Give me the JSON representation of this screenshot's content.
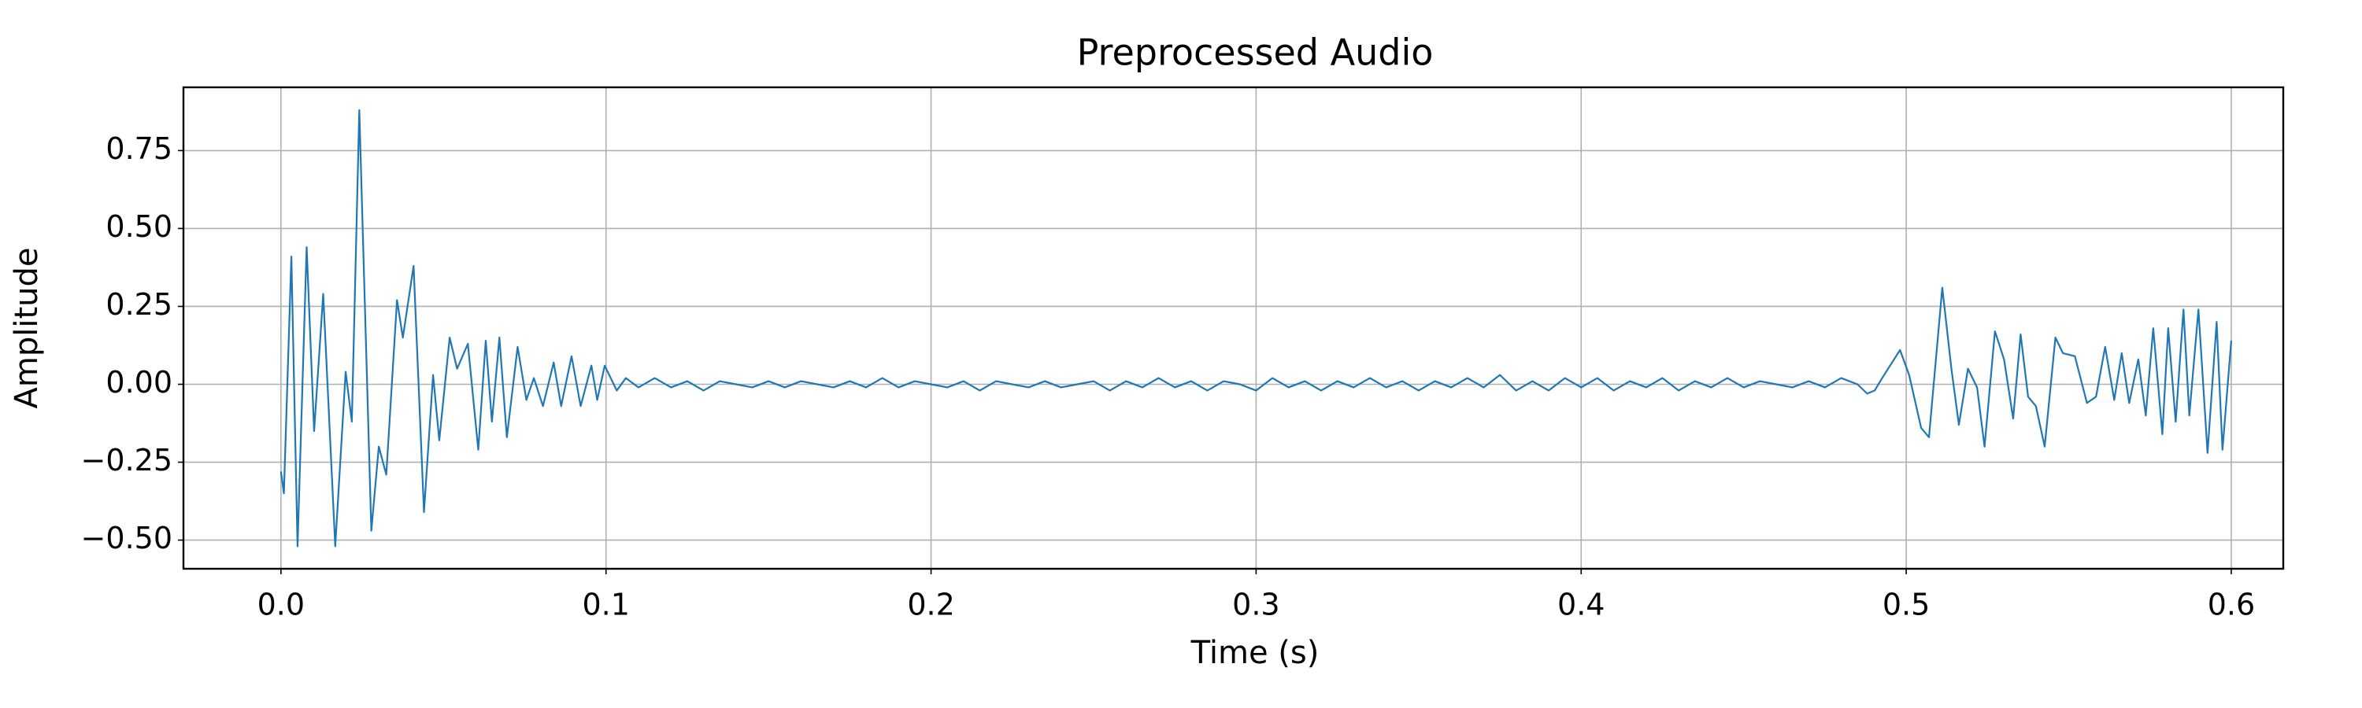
{
  "chart_data": {
    "type": "line",
    "title": "Preprocessed Audio",
    "xlabel": "Time (s)",
    "ylabel": "Amplitude",
    "x": [
      0.0,
      0.0009,
      0.0032,
      0.0051,
      0.0079,
      0.0102,
      0.013,
      0.0167,
      0.0199,
      0.0218,
      0.0241,
      0.0278,
      0.0301,
      0.0324,
      0.0357,
      0.0375,
      0.0408,
      0.044,
      0.0468,
      0.0487,
      0.0519,
      0.0542,
      0.0575,
      0.0607,
      0.063,
      0.0649,
      0.0672,
      0.0695,
      0.0728,
      0.0755,
      0.0778,
      0.0806,
      0.0839,
      0.0862,
      0.0894,
      0.0922,
      0.0955,
      0.0973,
      0.0996,
      0.1033,
      0.1061,
      0.11,
      0.115,
      0.12,
      0.125,
      0.13,
      0.135,
      0.14,
      0.145,
      0.15,
      0.155,
      0.16,
      0.165,
      0.17,
      0.175,
      0.18,
      0.185,
      0.19,
      0.195,
      0.2,
      0.205,
      0.21,
      0.215,
      0.22,
      0.225,
      0.23,
      0.235,
      0.24,
      0.245,
      0.25,
      0.255,
      0.26,
      0.265,
      0.27,
      0.275,
      0.28,
      0.285,
      0.29,
      0.295,
      0.3,
      0.305,
      0.31,
      0.315,
      0.32,
      0.325,
      0.33,
      0.335,
      0.34,
      0.345,
      0.35,
      0.355,
      0.36,
      0.365,
      0.37,
      0.375,
      0.38,
      0.385,
      0.39,
      0.395,
      0.4,
      0.405,
      0.41,
      0.415,
      0.42,
      0.425,
      0.43,
      0.435,
      0.44,
      0.445,
      0.45,
      0.455,
      0.46,
      0.465,
      0.47,
      0.475,
      0.48,
      0.485,
      0.488,
      0.4903,
      0.4926,
      0.4981,
      0.5009,
      0.5046,
      0.507,
      0.5111,
      0.5139,
      0.5162,
      0.519,
      0.5218,
      0.5241,
      0.5273,
      0.5301,
      0.5329,
      0.5352,
      0.5375,
      0.5399,
      0.5426,
      0.5459,
      0.5482,
      0.5519,
      0.5556,
      0.5584,
      0.5612,
      0.564,
      0.5663,
      0.5686,
      0.5714,
      0.5737,
      0.576,
      0.5788,
      0.5806,
      0.5829,
      0.5853,
      0.5871,
      0.5899,
      0.5927,
      0.5955,
      0.5973,
      0.6
    ],
    "series": [
      {
        "color": "#1f77b4",
        "values": [
          -0.28,
          -0.35,
          0.41,
          -0.52,
          0.44,
          -0.15,
          0.29,
          -0.52,
          0.04,
          -0.12,
          0.88,
          -0.47,
          -0.2,
          -0.29,
          0.27,
          0.15,
          0.38,
          -0.41,
          0.03,
          -0.18,
          0.15,
          0.05,
          0.13,
          -0.21,
          0.14,
          -0.12,
          0.15,
          -0.17,
          0.12,
          -0.05,
          0.02,
          -0.07,
          0.07,
          -0.07,
          0.09,
          -0.07,
          0.06,
          -0.05,
          0.06,
          -0.02,
          0.02,
          -0.01,
          0.02,
          -0.01,
          0.01,
          -0.02,
          0.01,
          0.0,
          -0.01,
          0.01,
          -0.01,
          0.01,
          0.0,
          -0.01,
          0.01,
          -0.01,
          0.02,
          -0.01,
          0.01,
          0.0,
          -0.01,
          0.01,
          -0.02,
          0.01,
          0.0,
          -0.01,
          0.01,
          -0.01,
          0.0,
          0.01,
          -0.02,
          0.01,
          -0.01,
          0.02,
          -0.01,
          0.01,
          -0.02,
          0.01,
          0.0,
          -0.02,
          0.02,
          -0.01,
          0.01,
          -0.02,
          0.01,
          -0.01,
          0.02,
          -0.01,
          0.01,
          -0.02,
          0.01,
          -0.01,
          0.02,
          -0.01,
          0.03,
          -0.02,
          0.01,
          -0.02,
          0.02,
          -0.01,
          0.02,
          -0.02,
          0.01,
          -0.01,
          0.02,
          -0.02,
          0.01,
          -0.01,
          0.02,
          -0.01,
          0.01,
          0.0,
          -0.01,
          0.01,
          -0.01,
          0.02,
          0.0,
          -0.03,
          -0.02,
          0.02,
          0.11,
          0.03,
          -0.14,
          -0.17,
          0.31,
          0.05,
          -0.13,
          0.05,
          -0.01,
          -0.2,
          0.17,
          0.08,
          -0.11,
          0.16,
          -0.04,
          -0.07,
          -0.2,
          0.15,
          0.1,
          0.09,
          -0.06,
          -0.04,
          0.12,
          -0.05,
          0.1,
          -0.06,
          0.08,
          -0.1,
          0.18,
          -0.16,
          0.18,
          -0.12,
          0.24,
          -0.1,
          0.24,
          -0.22,
          0.2,
          -0.21,
          0.14
        ]
      }
    ],
    "xlim": [
      -0.03,
      0.616
    ],
    "ylim": [
      -0.592,
      0.953
    ],
    "xticks": [
      {
        "value": 0,
        "label": "0.0"
      },
      0.1,
      0.2,
      0.3,
      0.4,
      0.5,
      0.6
    ],
    "yticks": [
      {
        "value": -0.5,
        "label": "−0.50"
      },
      {
        "value": -0.25,
        "label": "−0.25"
      },
      {
        "value": 0,
        "label": "0.00"
      },
      0.25,
      {
        "value": 0.5,
        "label": "0.50"
      },
      0.75
    ],
    "grid": true
  }
}
